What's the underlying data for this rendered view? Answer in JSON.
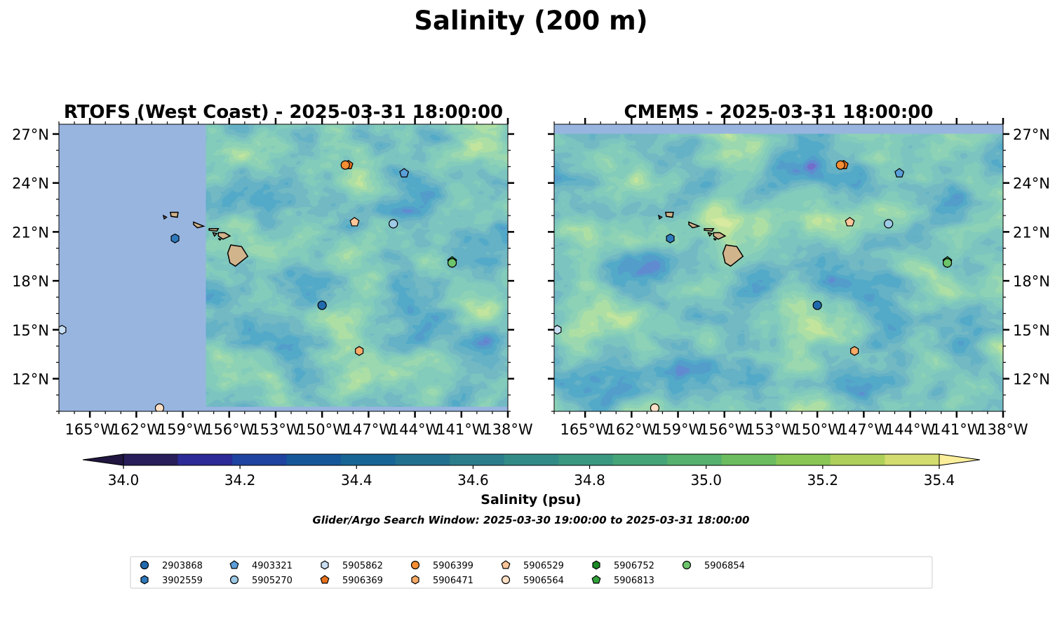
{
  "title": "Salinity (200 m)",
  "chart_data": {
    "type": "heatmap",
    "variable": "Salinity",
    "units": "psu",
    "colormap": "haline",
    "panels": [
      {
        "title": "RTOFS (West Coast) - 2025-03-31 18:00:00",
        "data_coverage": {
          "lon": [
            -157.5,
            -138.0
          ],
          "lat": [
            10.3,
            27.6
          ]
        },
        "no_data_color": "#98b5e0"
      },
      {
        "title": "CMEMS - 2025-03-31 18:00:00",
        "data_coverage": {
          "lon": [
            -167.0,
            -138.0
          ],
          "lat": [
            10.0,
            27.0
          ]
        },
        "no_data_color": "#98b5e0"
      }
    ],
    "extent": {
      "lon": [
        -167.0,
        -138.0
      ],
      "lat": [
        10.0,
        27.6
      ]
    },
    "x_ticks": [
      -165,
      -162,
      -159,
      -156,
      -153,
      -150,
      -147,
      -144,
      -141,
      -138
    ],
    "x_tick_labels": [
      "165°W",
      "162°W",
      "159°W",
      "156°W",
      "153°W",
      "150°W",
      "147°W",
      "144°W",
      "141°W",
      "138°W"
    ],
    "y_ticks": [
      12,
      15,
      18,
      21,
      24,
      27
    ],
    "y_tick_labels": [
      "12°N",
      "15°N",
      "18°N",
      "21°N",
      "24°N",
      "27°N"
    ],
    "colorbar": {
      "label": "Salinity (psu)",
      "min": 34.0,
      "max": 35.4,
      "step": 0.1,
      "extend": "both",
      "ticks": [
        34.0,
        34.2,
        34.4,
        34.6,
        34.8,
        35.0,
        35.2,
        35.4
      ],
      "tick_labels": [
        "34.0",
        "34.2",
        "34.4",
        "34.6",
        "34.8",
        "35.0",
        "35.2",
        "35.4"
      ],
      "colors": [
        "#291e5a",
        "#2b2a96",
        "#1f43a0",
        "#16579a",
        "#176594",
        "#22708f",
        "#2b7d8c",
        "#338b87",
        "#3a9880",
        "#46a578",
        "#55b16d",
        "#6cbc60",
        "#89c656",
        "#aed05a",
        "#d3dc6e"
      ],
      "under_color": "#20163f",
      "over_color": "#fcef9c"
    },
    "search_window_note": "Glider/Argo Search Window: 2025-03-30 19:00:00 to 2025-03-31 18:00:00",
    "floats": [
      {
        "id": "2903868",
        "lon": -150.0,
        "lat": 16.5,
        "marker": "circle",
        "color": "#2169ad"
      },
      {
        "id": "3902559",
        "lon": -159.5,
        "lat": 20.6,
        "marker": "hexagon",
        "color": "#2f79bd"
      },
      {
        "id": "4903321",
        "lon": -144.7,
        "lat": 24.6,
        "marker": "pentagon",
        "color": "#5b9fd9"
      },
      {
        "id": "5905270",
        "lon": -145.4,
        "lat": 21.5,
        "marker": "circle",
        "color": "#9ecae5"
      },
      {
        "id": "5905862",
        "lon": -166.8,
        "lat": 15.0,
        "marker": "hexagon",
        "color": "#c8def2"
      },
      {
        "id": "5906369",
        "lon": -148.3,
        "lat": 25.1,
        "marker": "pentagon",
        "color": "#e8711d"
      },
      {
        "id": "5906399",
        "lon": -148.5,
        "lat": 25.1,
        "marker": "circle",
        "color": "#f58d33"
      },
      {
        "id": "5906471",
        "lon": -147.6,
        "lat": 13.7,
        "marker": "hexagon",
        "color": "#fbaa66"
      },
      {
        "id": "5906529",
        "lon": -147.9,
        "lat": 21.6,
        "marker": "pentagon",
        "color": "#fcc699"
      },
      {
        "id": "5906564",
        "lon": -160.5,
        "lat": 10.2,
        "marker": "circle",
        "color": "#fde0c5"
      },
      {
        "id": "5906752",
        "lon": -141.6,
        "lat": 19.1,
        "marker": "hexagon",
        "color": "#1b8a25"
      },
      {
        "id": "5906813",
        "lon": -141.6,
        "lat": 19.2,
        "marker": "pentagon",
        "color": "#31a33b"
      },
      {
        "id": "5906854",
        "lon": -141.6,
        "lat": 19.1,
        "marker": "circle",
        "color": "#6dc46b"
      }
    ]
  },
  "legend": [
    {
      "label": "2903868",
      "marker": "circle",
      "color": "#2169ad"
    },
    {
      "label": "3902559",
      "marker": "hexagon",
      "color": "#2f79bd"
    },
    {
      "label": "4903321",
      "marker": "pentagon",
      "color": "#5b9fd9"
    },
    {
      "label": "5905270",
      "marker": "circle",
      "color": "#9ecae5"
    },
    {
      "label": "5905862",
      "marker": "hexagon",
      "color": "#c8def2"
    },
    {
      "label": "5906369",
      "marker": "pentagon",
      "color": "#e8711d"
    },
    {
      "label": "5906399",
      "marker": "circle",
      "color": "#f58d33"
    },
    {
      "label": "5906471",
      "marker": "hexagon",
      "color": "#fbaa66"
    },
    {
      "label": "5906529",
      "marker": "pentagon",
      "color": "#fcc699"
    },
    {
      "label": "5906564",
      "marker": "circle",
      "color": "#fde0c5"
    },
    {
      "label": "5906752",
      "marker": "hexagon",
      "color": "#1b8a25"
    },
    {
      "label": "5906813",
      "marker": "pentagon",
      "color": "#31a33b"
    },
    {
      "label": "5906854",
      "marker": "circle",
      "color": "#6dc46b"
    }
  ],
  "land_color": "#d2b48c"
}
